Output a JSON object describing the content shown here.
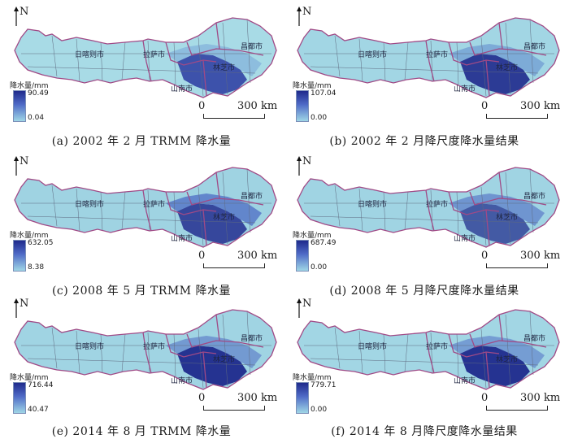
{
  "panels": [
    {
      "caption": "(a) 2002 年 2 月 TRMM 降水量",
      "legend_title": "降水量/mm",
      "legend_max": "90.49",
      "legend_min": "0.04"
    },
    {
      "caption": "(b) 2002 年 2 月降尺度降水量结果",
      "legend_title": "降水量/mm",
      "legend_max": "107.04",
      "legend_min": "0.00"
    },
    {
      "caption": "(c) 2008 年 5 月 TRMM 降水量",
      "legend_title": "降水量/mm",
      "legend_max": "632.05",
      "legend_min": "8.38"
    },
    {
      "caption": "(d) 2008 年 5 月降尺度降水量结果",
      "legend_title": "降水量/mm",
      "legend_max": "687.49",
      "legend_min": "0.00"
    },
    {
      "caption": "(e) 2014 年 8 月 TRMM 降水量",
      "legend_title": "降水量/mm",
      "legend_max": "716.44",
      "legend_min": "40.47"
    },
    {
      "caption": "(f) 2014 年 8 月降尺度降水量结果",
      "legend_title": "降水量/mm",
      "legend_max": "779.71",
      "legend_min": "0.00"
    }
  ],
  "north_label": "N",
  "scale": {
    "zero": "0",
    "label": "300 km"
  },
  "cities": {
    "rikaze": "日喀则市",
    "lasa": "拉萨市",
    "linzhi": "林芝市",
    "changdu": "昌都市",
    "shannan": "山南市"
  },
  "colors": {
    "low": "#9fd6e6",
    "mid": "#4f6bc7",
    "high": "#1f2a8c",
    "boundary": "#a04a86"
  }
}
